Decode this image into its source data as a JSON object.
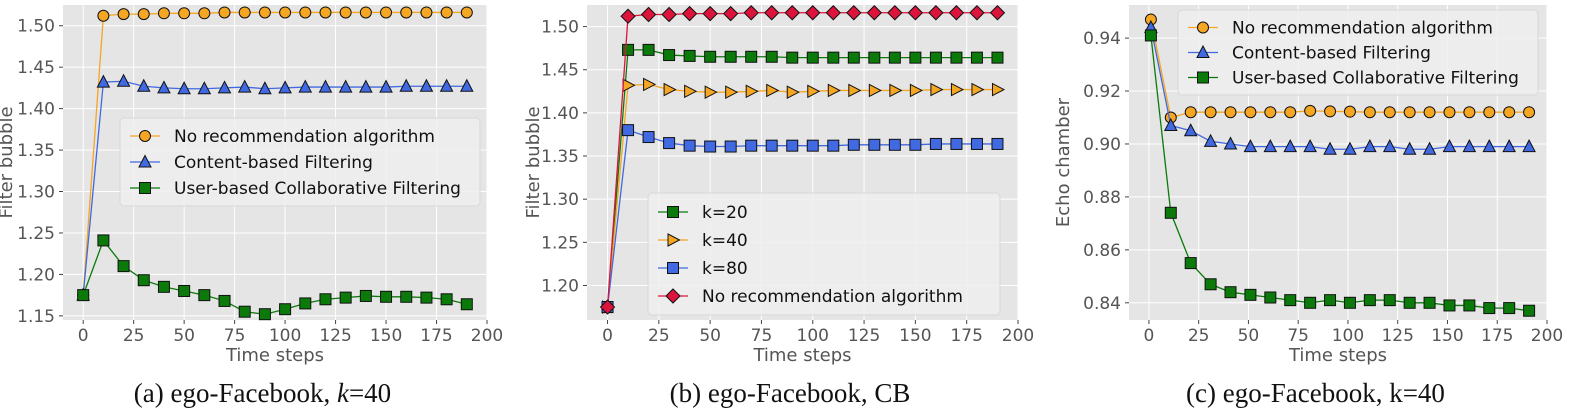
{
  "chart_data": [
    {
      "type": "line",
      "title": "",
      "xlabel": "Time steps",
      "ylabel": "Filter bubble",
      "xlim": [
        -10,
        200
      ],
      "ylim": [
        1.145,
        1.525
      ],
      "xticks": [
        0,
        25,
        50,
        75,
        100,
        125,
        150,
        175,
        200
      ],
      "yticks": [
        1.15,
        1.2,
        1.25,
        1.3,
        1.35,
        1.4,
        1.45,
        1.5
      ],
      "ytick_labels": [
        "1.15",
        "1.20",
        "1.25",
        "1.30",
        "1.35",
        "1.40",
        "1.45",
        "1.50"
      ],
      "grid": true,
      "legend_position": "center-right",
      "caption_prefix": "(a) ego-Facebook, ",
      "caption_var": "k",
      "caption_suffix": "=40",
      "x": [
        0,
        10,
        20,
        30,
        40,
        50,
        60,
        70,
        80,
        90,
        100,
        110,
        120,
        130,
        140,
        150,
        160,
        170,
        180,
        190
      ],
      "series": [
        {
          "name": "No recommendation algorithm",
          "color": "#f5a623",
          "marker": "circle",
          "values": [
            1.175,
            1.512,
            1.514,
            1.514,
            1.515,
            1.515,
            1.515,
            1.516,
            1.516,
            1.516,
            1.516,
            1.516,
            1.516,
            1.516,
            1.516,
            1.516,
            1.516,
            1.516,
            1.516,
            1.516
          ]
        },
        {
          "name": "Content-based Filtering",
          "color": "#4169e1",
          "marker": "triangle-up",
          "values": [
            1.175,
            1.432,
            1.433,
            1.427,
            1.425,
            1.424,
            1.424,
            1.425,
            1.426,
            1.424,
            1.425,
            1.426,
            1.426,
            1.426,
            1.426,
            1.426,
            1.427,
            1.427,
            1.427,
            1.427
          ]
        },
        {
          "name": "User-based Collaborative Filtering",
          "color": "#0b7a0b",
          "marker": "square",
          "values": [
            1.175,
            1.241,
            1.21,
            1.193,
            1.185,
            1.18,
            1.175,
            1.168,
            1.155,
            1.152,
            1.158,
            1.165,
            1.17,
            1.172,
            1.174,
            1.173,
            1.173,
            1.172,
            1.17,
            1.164
          ]
        }
      ]
    },
    {
      "type": "line",
      "title": "",
      "xlabel": "Time steps",
      "ylabel": "Filter bubble",
      "xlim": [
        -10,
        200
      ],
      "ylim": [
        1.16,
        1.525
      ],
      "xticks": [
        0,
        25,
        50,
        75,
        100,
        125,
        150,
        175,
        200
      ],
      "yticks": [
        1.2,
        1.25,
        1.3,
        1.35,
        1.4,
        1.45,
        1.5
      ],
      "ytick_labels": [
        "1.20",
        "1.25",
        "1.30",
        "1.35",
        "1.40",
        "1.45",
        "1.50"
      ],
      "grid": true,
      "legend_position": "lower-center",
      "caption_prefix": "(b) ego-Facebook, CB",
      "caption_var": "",
      "caption_suffix": "",
      "x": [
        0,
        10,
        20,
        30,
        40,
        50,
        60,
        70,
        80,
        90,
        100,
        110,
        120,
        130,
        140,
        150,
        160,
        170,
        180,
        190
      ],
      "series": [
        {
          "name": "k=20",
          "color": "#0b7a0b",
          "marker": "square",
          "values": [
            1.175,
            1.473,
            1.473,
            1.467,
            1.466,
            1.465,
            1.465,
            1.465,
            1.465,
            1.464,
            1.464,
            1.464,
            1.464,
            1.464,
            1.464,
            1.464,
            1.464,
            1.464,
            1.464,
            1.464
          ]
        },
        {
          "name": "k=40",
          "color": "#f5a623",
          "marker": "triangle-right",
          "values": [
            1.175,
            1.432,
            1.433,
            1.427,
            1.425,
            1.424,
            1.424,
            1.425,
            1.426,
            1.424,
            1.425,
            1.426,
            1.426,
            1.426,
            1.426,
            1.426,
            1.427,
            1.427,
            1.427,
            1.427
          ]
        },
        {
          "name": "k=80",
          "color": "#4169e1",
          "marker": "square",
          "values": [
            1.175,
            1.38,
            1.372,
            1.365,
            1.362,
            1.361,
            1.361,
            1.362,
            1.362,
            1.362,
            1.362,
            1.362,
            1.363,
            1.363,
            1.363,
            1.363,
            1.364,
            1.364,
            1.364,
            1.364
          ]
        },
        {
          "name": "No recommendation algorithm",
          "color": "#dc143c",
          "marker": "diamond",
          "values": [
            1.175,
            1.512,
            1.514,
            1.514,
            1.515,
            1.515,
            1.515,
            1.516,
            1.516,
            1.516,
            1.516,
            1.516,
            1.516,
            1.516,
            1.516,
            1.516,
            1.516,
            1.516,
            1.516,
            1.516
          ]
        }
      ]
    },
    {
      "type": "line",
      "title": "",
      "xlabel": "Time steps",
      "ylabel": "Echo chamber",
      "xlim": [
        -10,
        200
      ],
      "ylim": [
        0.8335,
        0.9525
      ],
      "xticks": [
        0,
        25,
        50,
        75,
        100,
        125,
        150,
        175,
        200
      ],
      "yticks": [
        0.84,
        0.86,
        0.88,
        0.9,
        0.92,
        0.94
      ],
      "ytick_labels": [
        "0.84",
        "0.86",
        "0.88",
        "0.90",
        "0.92",
        "0.94"
      ],
      "grid": true,
      "legend_position": "top-right",
      "caption_prefix": "(c) ego-Facebook, k=40",
      "caption_var": "",
      "caption_suffix": "",
      "x": [
        1,
        11,
        21,
        31,
        41,
        51,
        61,
        71,
        81,
        91,
        101,
        111,
        121,
        131,
        141,
        151,
        161,
        171,
        181,
        191
      ],
      "series": [
        {
          "name": "No recommendation algorithm",
          "color": "#f5a623",
          "marker": "circle",
          "values": [
            0.947,
            0.91,
            0.912,
            0.912,
            0.912,
            0.912,
            0.912,
            0.912,
            0.9125,
            0.9123,
            0.9122,
            0.912,
            0.912,
            0.912,
            0.912,
            0.912,
            0.912,
            0.912,
            0.912,
            0.912
          ]
        },
        {
          "name": "Content-based Filtering",
          "color": "#4169e1",
          "marker": "triangle-up",
          "values": [
            0.944,
            0.907,
            0.905,
            0.901,
            0.9,
            0.899,
            0.899,
            0.899,
            0.899,
            0.898,
            0.898,
            0.899,
            0.899,
            0.898,
            0.898,
            0.899,
            0.899,
            0.899,
            0.899,
            0.899
          ]
        },
        {
          "name": "User-based Collaborative Filtering",
          "color": "#0b7a0b",
          "marker": "square",
          "values": [
            0.941,
            0.874,
            0.855,
            0.847,
            0.844,
            0.843,
            0.842,
            0.841,
            0.84,
            0.841,
            0.84,
            0.841,
            0.841,
            0.84,
            0.84,
            0.839,
            0.839,
            0.838,
            0.838,
            0.837
          ]
        }
      ]
    }
  ]
}
